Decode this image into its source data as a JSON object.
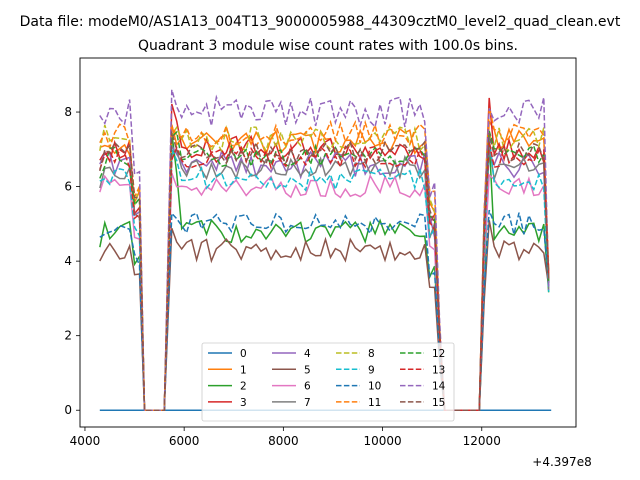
{
  "figure": {
    "suptitle": "Data file: modeM0/AS1A13_004T13_9000005988_44309cztM0_level2_quad_clean.evt",
    "title": "Quadrant 3 module wise count rates with 100.0s bins.",
    "offset_label": "+4.397e8"
  },
  "chart_data": {
    "type": "line",
    "title": "Quadrant 3 module wise count rates with 100.0s bins.",
    "xlabel": "",
    "ylabel": "",
    "x_offset": 439700000,
    "xlim": [
      3900,
      13900
    ],
    "ylim": [
      -0.45,
      9.45
    ],
    "xticks": [
      4000,
      6000,
      8000,
      10000,
      12000
    ],
    "xtick_labels": [
      "4000",
      "6000",
      "8000",
      "10000",
      "12000"
    ],
    "yticks": [
      0,
      2,
      4,
      6,
      8
    ],
    "ytick_labels": [
      "0",
      "2",
      "4",
      "6",
      "8"
    ],
    "grid": false,
    "legend_position": "lower center",
    "segments": [
      {
        "start": 4300,
        "end": 5100
      },
      {
        "start": 5750,
        "end": 11050
      },
      {
        "start": 12050,
        "end": 13400
      }
    ],
    "gaps": [
      {
        "start": 5200,
        "end": 5650
      },
      {
        "start": 11250,
        "end": 11950
      }
    ],
    "series": [
      {
        "name": "0",
        "color": "#1f77b4",
        "dashed": false,
        "level": 0.0,
        "first_peak": 0.0,
        "amplitude": 0.0
      },
      {
        "name": "1",
        "color": "#ff7f0e",
        "dashed": false,
        "level": 7.2,
        "first_peak": 7.7,
        "amplitude": 0.35
      },
      {
        "name": "2",
        "color": "#2ca02c",
        "dashed": false,
        "level": 4.8,
        "first_peak": 7.5,
        "amplitude": 0.3
      },
      {
        "name": "3",
        "color": "#d62728",
        "dashed": false,
        "level": 7.0,
        "first_peak": 8.3,
        "amplitude": 0.35
      },
      {
        "name": "4",
        "color": "#9467bd",
        "dashed": false,
        "level": 6.6,
        "first_peak": 7.2,
        "amplitude": 0.35
      },
      {
        "name": "5",
        "color": "#8c564b",
        "dashed": false,
        "level": 4.3,
        "first_peak": 5.0,
        "amplitude": 0.3
      },
      {
        "name": "6",
        "color": "#e377c2",
        "dashed": false,
        "level": 6.0,
        "first_peak": 6.5,
        "amplitude": 0.3
      },
      {
        "name": "7",
        "color": "#7f7f7f",
        "dashed": false,
        "level": 6.5,
        "first_peak": 7.0,
        "amplitude": 0.3
      },
      {
        "name": "8",
        "color": "#bcbd22",
        "dashed": true,
        "level": 7.3,
        "first_peak": 7.6,
        "amplitude": 0.35
      },
      {
        "name": "9",
        "color": "#17becf",
        "dashed": true,
        "level": 6.2,
        "first_peak": 7.2,
        "amplitude": 0.3
      },
      {
        "name": "10",
        "color": "#1f77b4",
        "dashed": true,
        "level": 5.0,
        "first_peak": 5.5,
        "amplitude": 0.3
      },
      {
        "name": "11",
        "color": "#ff7f0e",
        "dashed": true,
        "level": 7.4,
        "first_peak": 7.9,
        "amplitude": 0.35
      },
      {
        "name": "12",
        "color": "#2ca02c",
        "dashed": true,
        "level": 6.8,
        "first_peak": 7.6,
        "amplitude": 0.3
      },
      {
        "name": "13",
        "color": "#d62728",
        "dashed": true,
        "level": 6.8,
        "first_peak": 7.0,
        "amplitude": 0.3
      },
      {
        "name": "14",
        "color": "#9467bd",
        "dashed": true,
        "level": 8.0,
        "first_peak": 8.2,
        "amplitude": 0.4
      },
      {
        "name": "15",
        "color": "#8c564b",
        "dashed": true,
        "level": 6.9,
        "first_peak": 7.2,
        "amplitude": 0.3
      }
    ]
  }
}
